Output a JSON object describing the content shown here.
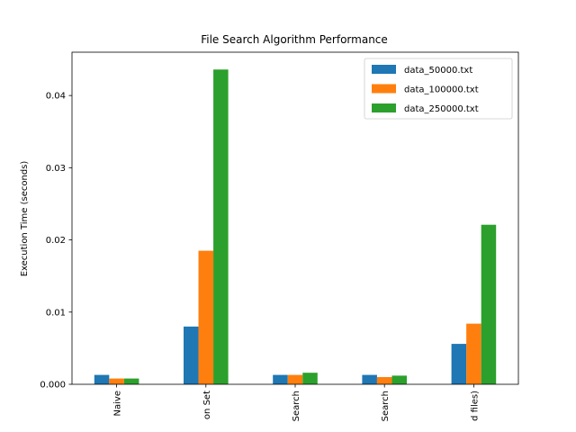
{
  "chart_data": {
    "type": "bar",
    "title": "File Search Algorithm Performance",
    "xlabel": "",
    "ylabel": "Execution Time (seconds)",
    "ylim": [
      0,
      0.046
    ],
    "yticks": [
      0.0,
      0.01,
      0.02,
      0.03,
      0.04
    ],
    "ytick_labels": [
      "0.000",
      "0.01",
      "0.02",
      "0.03",
      "0.04"
    ],
    "categories": [
      "Naive",
      "on Set",
      "Search",
      "Search",
      "d files)"
    ],
    "series": [
      {
        "name": "data_50000.txt",
        "color": "#1f77b4",
        "values": [
          0.0013,
          0.008,
          0.0013,
          0.0013,
          0.0056
        ]
      },
      {
        "name": "data_100000.txt",
        "color": "#ff7f0e",
        "values": [
          0.0008,
          0.0185,
          0.0013,
          0.001,
          0.0084
        ]
      },
      {
        "name": "data_250000.txt",
        "color": "#2ca02c",
        "values": [
          0.0008,
          0.0436,
          0.0016,
          0.0012,
          0.0221
        ]
      }
    ],
    "legend": "top-right",
    "grid": false
  }
}
